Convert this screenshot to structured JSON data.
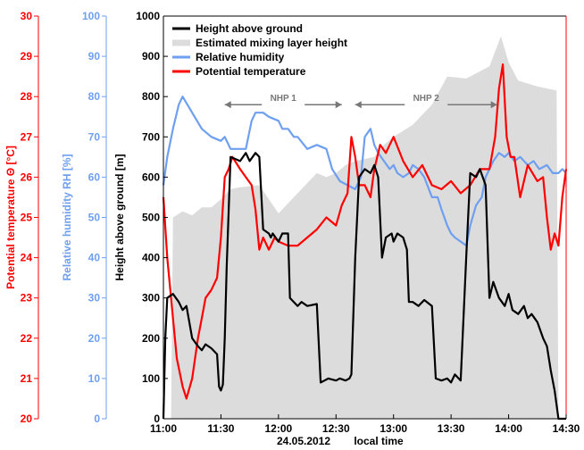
{
  "chart_data": {
    "type": "line",
    "xlabel_date": "24.05.2012",
    "xlabel_unit": "local time",
    "x_ticks": [
      "11:00",
      "11:30",
      "12:00",
      "12:30",
      "13:00",
      "13:30",
      "14:00",
      "14:30"
    ],
    "x_tick_minutes": [
      660,
      690,
      720,
      750,
      780,
      810,
      840,
      870
    ],
    "xlim_minutes": [
      660,
      870
    ],
    "axes": {
      "height": {
        "label": "Height above ground [m]",
        "range": [
          0,
          1000
        ],
        "ticks": [
          0,
          100,
          200,
          300,
          400,
          500,
          600,
          700,
          800,
          900,
          1000
        ],
        "color": "#000000"
      },
      "rh": {
        "label": "Relative humidity RH [%]",
        "range": [
          0,
          100
        ],
        "ticks": [
          0,
          10,
          20,
          30,
          40,
          50,
          60,
          70,
          80,
          90,
          100
        ],
        "color": "#6f9ff0"
      },
      "theta": {
        "label": "Potential temperature Θ [°C]",
        "range": [
          20,
          30
        ],
        "ticks": [
          20,
          21,
          22,
          23,
          24,
          25,
          26,
          27,
          28,
          29,
          30
        ],
        "color": "#ff0000"
      }
    },
    "legend": {
      "position": "top-left"
    },
    "annotations": [
      {
        "label": "NHP 1",
        "from_minutes": 692,
        "to_minutes": 753,
        "height": 800
      },
      {
        "label": "NHP 2",
        "from_minutes": 760,
        "to_minutes": 834,
        "height": 800
      }
    ],
    "series": [
      {
        "name": "Estimated mixing layer height",
        "style": "area",
        "color": "#dcdcdc",
        "x_minutes": [
          664,
          665,
          670,
          675,
          680,
          685,
          690,
          695,
          700,
          710,
          720,
          730,
          740,
          745,
          750,
          755,
          760,
          770,
          775,
          780,
          790,
          800,
          808,
          818,
          830,
          836,
          840,
          845,
          855,
          865,
          866
        ],
        "height": [
          0,
          500,
          515,
          505,
          525,
          525,
          545,
          570,
          575,
          580,
          510,
          560,
          610,
          600,
          610,
          630,
          640,
          650,
          680,
          700,
          730,
          780,
          850,
          845,
          875,
          950,
          885,
          840,
          825,
          815,
          0
        ]
      },
      {
        "name": "Height above ground",
        "color": "#000000",
        "x_minutes": [
          660,
          661,
          662,
          665,
          668,
          670,
          672,
          675,
          678,
          680,
          682,
          685,
          688,
          689,
          690,
          691,
          692,
          693,
          695,
          700,
          703,
          705,
          708,
          710,
          712,
          715,
          716,
          717,
          720,
          722,
          725,
          726,
          728,
          730,
          732,
          735,
          740,
          742,
          744,
          746,
          750,
          752,
          755,
          757,
          758,
          760,
          762,
          765,
          768,
          770,
          772,
          774,
          776,
          779,
          780,
          782,
          785,
          787,
          788,
          790,
          793,
          796,
          800,
          802,
          805,
          808,
          810,
          812,
          815,
          818,
          820,
          823,
          825,
          828,
          830,
          832,
          835,
          838,
          840,
          842,
          845,
          848,
          850,
          852,
          855,
          858,
          860,
          862,
          864,
          866,
          868,
          870
        ],
        "height": [
          0,
          200,
          300,
          310,
          290,
          270,
          280,
          200,
          180,
          170,
          185,
          175,
          160,
          80,
          70,
          85,
          200,
          380,
          650,
          640,
          660,
          640,
          660,
          650,
          470,
          460,
          450,
          460,
          440,
          460,
          460,
          300,
          290,
          280,
          290,
          280,
          285,
          90,
          95,
          100,
          95,
          100,
          95,
          100,
          110,
          400,
          600,
          620,
          610,
          630,
          600,
          400,
          450,
          460,
          440,
          460,
          450,
          420,
          290,
          290,
          280,
          295,
          280,
          100,
          95,
          100,
          90,
          110,
          95,
          410,
          610,
          600,
          620,
          580,
          300,
          340,
          300,
          280,
          310,
          270,
          260,
          280,
          250,
          260,
          240,
          200,
          180,
          120,
          70,
          0,
          0,
          0
        ]
      },
      {
        "name": "Relative humidity",
        "color": "#6f9ff0",
        "x_minutes": [
          660,
          662,
          665,
          668,
          670,
          675,
          680,
          685,
          690,
          692,
          695,
          700,
          703,
          706,
          708,
          712,
          715,
          720,
          722,
          725,
          728,
          730,
          735,
          740,
          745,
          748,
          752,
          756,
          760,
          763,
          765,
          768,
          770,
          772,
          775,
          778,
          780,
          782,
          785,
          788,
          790,
          793,
          796,
          800,
          803,
          805,
          808,
          810,
          812,
          815,
          818,
          820,
          823,
          826,
          828,
          830,
          832,
          835,
          838,
          840,
          843,
          846,
          850,
          853,
          856,
          860,
          863,
          866,
          868,
          870
        ],
        "rh": [
          58,
          65,
          72,
          78,
          80,
          76,
          72,
          70,
          69,
          70,
          67,
          67,
          67,
          74,
          76,
          76,
          75,
          74,
          72,
          72,
          70,
          70,
          67,
          68,
          67,
          62,
          59,
          58,
          57,
          60,
          70,
          72,
          68,
          66,
          64,
          62,
          63,
          61,
          60,
          61,
          63,
          62,
          60,
          55,
          55,
          52,
          48,
          46,
          45,
          44,
          43,
          48,
          53,
          55,
          60,
          62,
          64,
          66,
          65,
          66,
          64,
          65,
          63,
          64,
          62,
          63,
          61,
          61,
          62,
          61
        ]
      },
      {
        "name": "Potential temperature",
        "color": "#ff0000",
        "x_minutes": [
          660,
          662,
          665,
          667,
          670,
          672,
          675,
          678,
          680,
          682,
          685,
          688,
          690,
          692,
          694,
          696,
          700,
          703,
          706,
          708,
          710,
          712,
          715,
          718,
          720,
          725,
          730,
          735,
          740,
          745,
          750,
          753,
          756,
          758,
          760,
          762,
          765,
          768,
          770,
          773,
          776,
          780,
          785,
          790,
          795,
          800,
          805,
          810,
          815,
          820,
          825,
          830,
          833,
          835,
          837,
          839,
          841,
          843,
          846,
          850,
          855,
          858,
          860,
          862,
          864,
          866,
          868,
          870
        ],
        "theta": [
          25.5,
          24.0,
          22.5,
          21.5,
          20.8,
          20.5,
          21.0,
          22.0,
          22.5,
          23.0,
          23.2,
          23.5,
          24.5,
          26.0,
          26.2,
          26.5,
          26.2,
          26.0,
          25.8,
          25.2,
          24.2,
          24.5,
          24.2,
          24.5,
          24.4,
          24.3,
          24.3,
          24.5,
          24.7,
          25.0,
          24.8,
          25.3,
          25.6,
          27.0,
          26.5,
          25.8,
          25.8,
          25.5,
          26.2,
          26.8,
          26.6,
          27.0,
          26.4,
          26.0,
          26.3,
          25.8,
          25.7,
          25.9,
          25.6,
          25.8,
          26.2,
          26.2,
          27.0,
          28.2,
          28.8,
          27.0,
          26.5,
          26.5,
          25.5,
          26.3,
          25.9,
          26.0,
          25.0,
          24.2,
          24.6,
          24.3,
          25.5,
          26.2
        ]
      }
    ]
  }
}
